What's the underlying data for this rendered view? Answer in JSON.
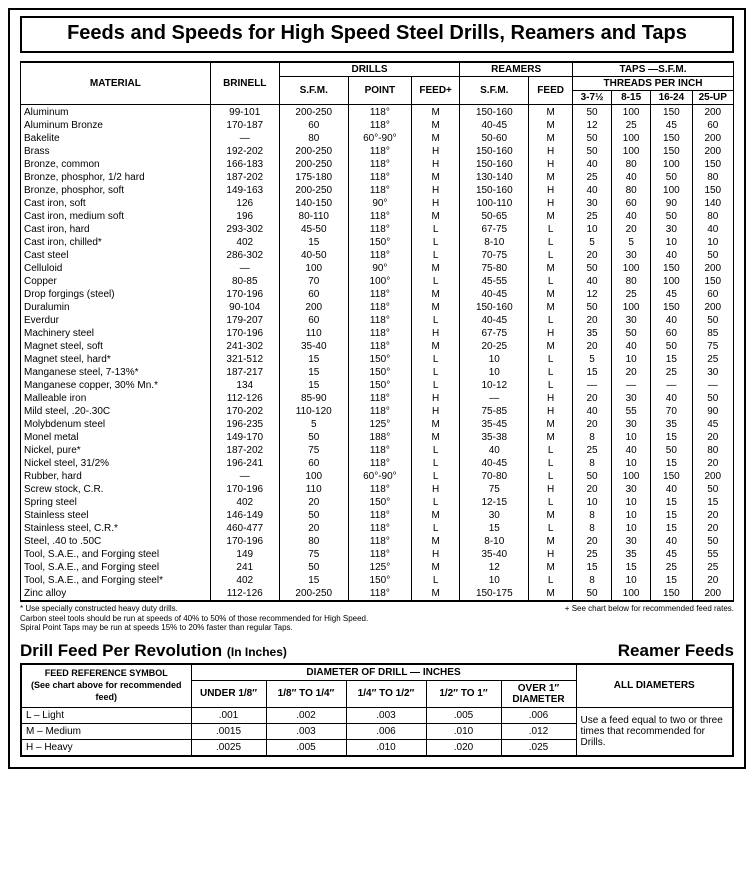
{
  "title": "Feeds and Speeds for High Speed Steel Drills, Reamers and Taps",
  "headers": {
    "material": "MATERIAL",
    "brinell": "BRINELL",
    "drills": "DRILLS",
    "sfm": "S.F.M.",
    "point": "POINT",
    "feedp": "FEED+",
    "reamers": "REAMERS",
    "rsfm": "S.F.M.",
    "rfeed": "FEED",
    "taps": "TAPS —S.F.M.",
    "tpi": "THREADS PER INCH",
    "t1": "3-7½",
    "t2": "8-15",
    "t3": "16-24",
    "t4": "25-UP"
  },
  "rows": [
    [
      "Aluminum",
      "99-101",
      "200-250",
      "118°",
      "M",
      "150-160",
      "M",
      "50",
      "100",
      "150",
      "200"
    ],
    [
      "Aluminum Bronze",
      "170-187",
      "60",
      "118°",
      "M",
      "40-45",
      "M",
      "12",
      "25",
      "45",
      "60"
    ],
    [
      "Bakelite",
      "—",
      "80",
      "60°-90°",
      "M",
      "50-60",
      "M",
      "50",
      "100",
      "150",
      "200"
    ],
    [
      "Brass",
      "192-202",
      "200-250",
      "118°",
      "H",
      "150-160",
      "H",
      "50",
      "100",
      "150",
      "200"
    ],
    [
      "Bronze, common",
      "166-183",
      "200-250",
      "118°",
      "H",
      "150-160",
      "H",
      "40",
      "80",
      "100",
      "150"
    ],
    [
      "Bronze, phosphor, 1/2 hard",
      "187-202",
      "175-180",
      "118°",
      "M",
      "130-140",
      "M",
      "25",
      "40",
      "50",
      "80"
    ],
    [
      "Bronze, phosphor, soft",
      "149-163",
      "200-250",
      "118°",
      "H",
      "150-160",
      "H",
      "40",
      "80",
      "100",
      "150"
    ],
    [
      "Cast iron, soft",
      "126",
      "140-150",
      "90°",
      "H",
      "100-110",
      "H",
      "30",
      "60",
      "90",
      "140"
    ],
    [
      "Cast iron, medium soft",
      "196",
      "80-110",
      "118°",
      "M",
      "50-65",
      "M",
      "25",
      "40",
      "50",
      "80"
    ],
    [
      "Cast iron, hard",
      "293-302",
      "45-50",
      "118°",
      "L",
      "67-75",
      "L",
      "10",
      "20",
      "30",
      "40"
    ],
    [
      "Cast iron, chilled*",
      "402",
      "15",
      "150°",
      "L",
      "8-10",
      "L",
      "5",
      "5",
      "10",
      "10"
    ],
    [
      "Cast steel",
      "286-302",
      "40-50",
      "118°",
      "L",
      "70-75",
      "L",
      "20",
      "30",
      "40",
      "50"
    ],
    [
      "Celluloid",
      "—",
      "100",
      "90°",
      "M",
      "75-80",
      "M",
      "50",
      "100",
      "150",
      "200"
    ],
    [
      "Copper",
      "80-85",
      "70",
      "100°",
      "L",
      "45-55",
      "L",
      "40",
      "80",
      "100",
      "150"
    ],
    [
      "Drop forgings (steel)",
      "170-196",
      "60",
      "118°",
      "M",
      "40-45",
      "M",
      "12",
      "25",
      "45",
      "60"
    ],
    [
      "Duralumin",
      "90-104",
      "200",
      "118°",
      "M",
      "150-160",
      "M",
      "50",
      "100",
      "150",
      "200"
    ],
    [
      "Everdur",
      "179-207",
      "60",
      "118°",
      "L",
      "40-45",
      "L",
      "20",
      "30",
      "40",
      "50"
    ],
    [
      "Machinery steel",
      "170-196",
      "110",
      "118°",
      "H",
      "67-75",
      "H",
      "35",
      "50",
      "60",
      "85"
    ],
    [
      "Magnet steel, soft",
      "241-302",
      "35-40",
      "118°",
      "M",
      "20-25",
      "M",
      "20",
      "40",
      "50",
      "75"
    ],
    [
      "Magnet steel, hard*",
      "321-512",
      "15",
      "150°",
      "L",
      "10",
      "L",
      "5",
      "10",
      "15",
      "25"
    ],
    [
      "Manganese steel, 7-13%*",
      "187-217",
      "15",
      "150°",
      "L",
      "10",
      "L",
      "15",
      "20",
      "25",
      "30"
    ],
    [
      "Manganese copper, 30% Mn.*",
      "134",
      "15",
      "150°",
      "L",
      "10-12",
      "L",
      "—",
      "—",
      "—",
      "—"
    ],
    [
      "Malleable iron",
      "112-126",
      "85-90",
      "118°",
      "H",
      "—",
      "H",
      "20",
      "30",
      "40",
      "50"
    ],
    [
      "Mild steel, .20-.30C",
      "170-202",
      "110-120",
      "118°",
      "H",
      "75-85",
      "H",
      "40",
      "55",
      "70",
      "90"
    ],
    [
      "Molybdenum steel",
      "196-235",
      "5",
      "125°",
      "M",
      "35-45",
      "M",
      "20",
      "30",
      "35",
      "45"
    ],
    [
      "Monel metal",
      "149-170",
      "50",
      "188°",
      "M",
      "35-38",
      "M",
      "8",
      "10",
      "15",
      "20"
    ],
    [
      "Nickel, pure*",
      "187-202",
      "75",
      "118°",
      "L",
      "40",
      "L",
      "25",
      "40",
      "50",
      "80"
    ],
    [
      "Nickel steel, 31/2%",
      "196-241",
      "60",
      "118°",
      "L",
      "40-45",
      "L",
      "8",
      "10",
      "15",
      "20"
    ],
    [
      "Rubber, hard",
      "—",
      "100",
      "60°-90°",
      "L",
      "70-80",
      "L",
      "50",
      "100",
      "150",
      "200"
    ],
    [
      "Screw stock, C.R.",
      "170-196",
      "110",
      "118°",
      "H",
      "75",
      "H",
      "20",
      "30",
      "40",
      "50"
    ],
    [
      "Spring steel",
      "402",
      "20",
      "150°",
      "L",
      "12-15",
      "L",
      "10",
      "10",
      "15",
      "15"
    ],
    [
      "Stainless steel",
      "146-149",
      "50",
      "118°",
      "M",
      "30",
      "M",
      "8",
      "10",
      "15",
      "20"
    ],
    [
      "Stainless steel, C.R.*",
      "460-477",
      "20",
      "118°",
      "L",
      "15",
      "L",
      "8",
      "10",
      "15",
      "20"
    ],
    [
      "Steel, .40 to .50C",
      "170-196",
      "80",
      "118°",
      "M",
      "8-10",
      "M",
      "20",
      "30",
      "40",
      "50"
    ],
    [
      "Tool, S.A.E., and Forging steel",
      "149",
      "75",
      "118°",
      "H",
      "35-40",
      "H",
      "25",
      "35",
      "45",
      "55"
    ],
    [
      "Tool, S.A.E., and Forging steel",
      "241",
      "50",
      "125°",
      "M",
      "12",
      "M",
      "15",
      "15",
      "25",
      "25"
    ],
    [
      "Tool, S.A.E., and Forging steel*",
      "402",
      "15",
      "150°",
      "L",
      "10",
      "L",
      "8",
      "10",
      "15",
      "20"
    ],
    [
      "Zinc alloy",
      "112-126",
      "200-250",
      "118°",
      "M",
      "150-175",
      "M",
      "50",
      "100",
      "150",
      "200"
    ]
  ],
  "footnotes": {
    "l1": "* Use specially constructed heavy duty drills.",
    "l2": "Carbon steel tools should be run at speeds of 40% to 50% of those recommended for High Speed.",
    "l3": "Spiral Point Taps may be run at speeds 15% to 20% faster than regular Taps.",
    "r1": "+ See chart below for recommended feed rates."
  },
  "feed_section": {
    "h_left": "Drill Feed Per Revolution",
    "h_left_sub": "(In Inches)",
    "h_right": "Reamer Feeds",
    "col_group": "DIAMETER OF DRILL — INCHES",
    "col_sym_t": "FEED REFERENCE SYMBOL",
    "col_sym_b": "(See chart above for recommended feed)",
    "cols": [
      "UNDER 1/8″",
      "1/8″ TO 1/4″",
      "1/4″ TO 1/2″",
      "1/2″ TO 1″",
      "OVER 1″ DIAMETER"
    ],
    "all": "ALL DIAMETERS",
    "rows": [
      [
        "L – Light",
        ".001",
        ".002",
        ".003",
        ".005",
        ".006"
      ],
      [
        "M – Medium",
        ".0015",
        ".003",
        ".006",
        ".010",
        ".012"
      ],
      [
        "H – Heavy",
        ".0025",
        ".005",
        ".010",
        ".020",
        ".025"
      ]
    ],
    "reamer_note": "Use a feed equal to two or three times that recommended for Drills."
  }
}
